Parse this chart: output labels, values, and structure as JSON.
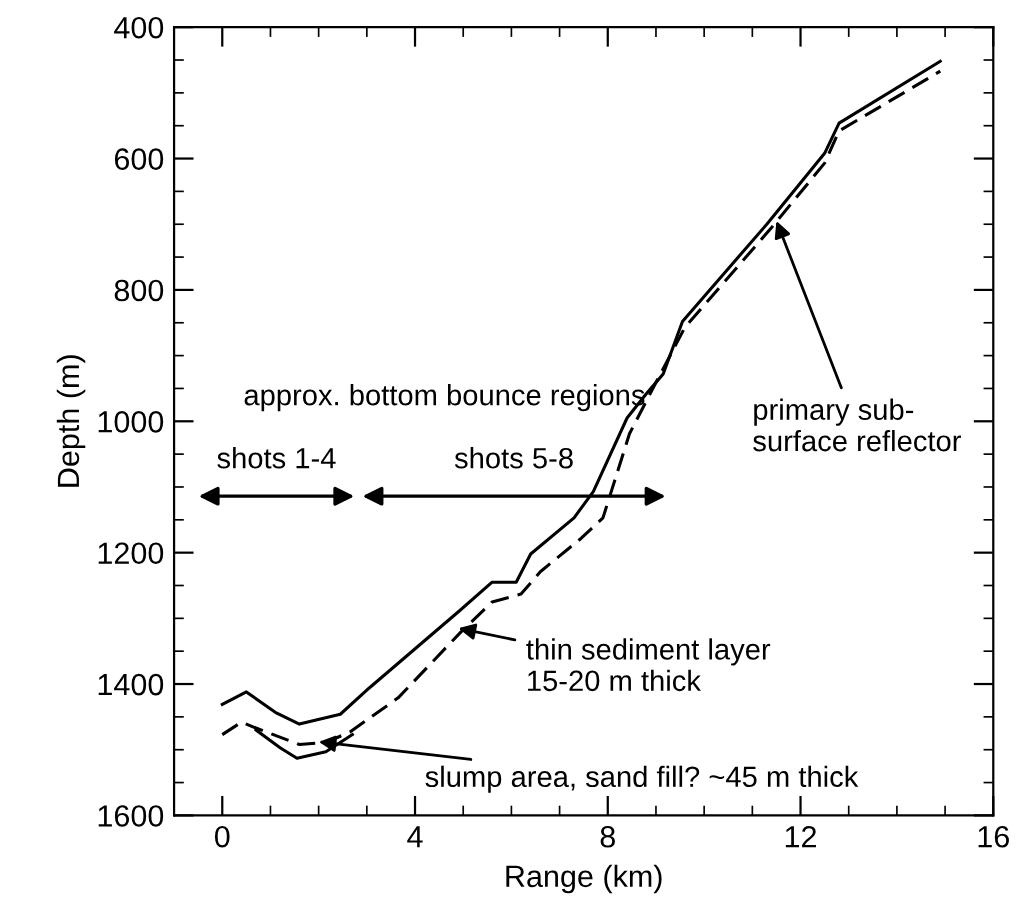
{
  "chart_data": {
    "type": "line",
    "xlabel": "Range (km)",
    "ylabel": "Depth (m)",
    "xlim": [
      -1,
      16
    ],
    "xticks": [
      0,
      4,
      8,
      12,
      16
    ],
    "ylim": [
      1600,
      400
    ],
    "yticks": [
      400,
      600,
      800,
      1000,
      1200,
      1400,
      1600
    ],
    "grid": false,
    "marker": "none",
    "series": [
      {
        "color": "#000000",
        "line_style": "solid",
        "x": [
          0,
          0.5,
          1.1,
          1.6,
          2.45,
          3.05,
          4.9,
          5.6,
          6.1,
          6.4,
          7.3,
          7.7,
          8.4,
          8.8,
          9.15,
          9.55,
          11.3,
          12.5,
          12.8,
          14.9
        ],
        "values": [
          1431,
          1412,
          1443,
          1461,
          1446,
          1406,
          1290,
          1245,
          1245,
          1202,
          1147,
          1107,
          995,
          958,
          928,
          848,
          700,
          592,
          546,
          452
        ]
      },
      {
        "color": "#000000",
        "line_style": "dashed",
        "x": [
          0,
          0.4,
          0.7,
          1.6,
          2.15,
          2.65,
          3.65,
          4.95,
          5.6,
          6.2,
          6.6,
          7.45,
          7.9,
          8.45,
          8.9,
          9.6,
          11.4,
          12.5,
          12.8,
          14.9
        ],
        "values": [
          1477,
          1458,
          1467,
          1492,
          1489,
          1473,
          1421,
          1321,
          1275,
          1263,
          1229,
          1178,
          1147,
          1019,
          955,
          857,
          705,
          607,
          558,
          467
        ]
      },
      {
        "color": "#000000",
        "line_style": "solid",
        "x": [
          0.7,
          1.2,
          1.55,
          2.15,
          2.7
        ],
        "values": [
          1470,
          1497,
          1513,
          1503,
          1477
        ]
      }
    ],
    "annotations": [
      "approx. bottom bounce regions",
      "shots 1-4",
      "shots 5-8",
      {
        "text": "primary sub-\nsurface reflector",
        "x": 11.5,
        "y": 695
      },
      {
        "text": "thin sediment layer\n15-20 m thick",
        "x": 4.9,
        "y": 1315
      },
      {
        "text": "slump area, sand fill? ~45 m thick",
        "x": 2.0,
        "y": 1488
      }
    ]
  }
}
